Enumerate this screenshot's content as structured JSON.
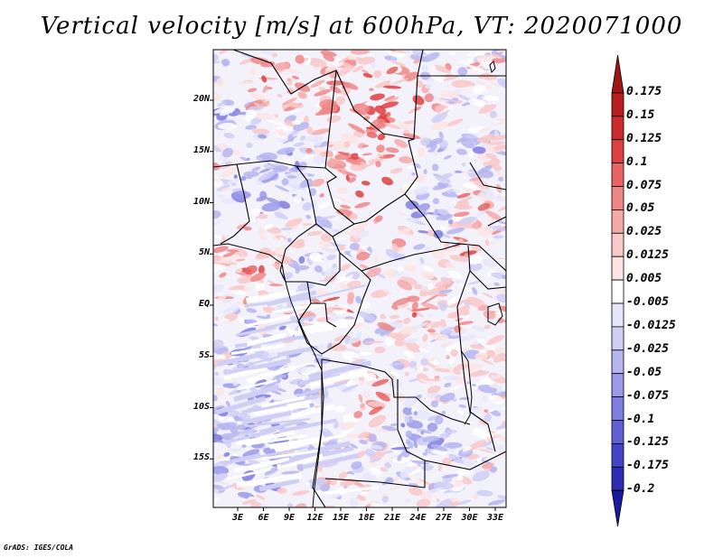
{
  "title": "Vertical velocity [m/s] at 600hPa, VT: 2020071000",
  "map": {
    "lat_labels": [
      "20N",
      "15N",
      "10N",
      "5N",
      "EQ",
      "5S",
      "10S",
      "15S"
    ],
    "lat_values": [
      20,
      15,
      10,
      5,
      0,
      -5,
      -10,
      -15
    ],
    "lon_labels": [
      "3E",
      "6E",
      "9E",
      "12E",
      "15E",
      "18E",
      "21E",
      "24E",
      "27E",
      "30E",
      "33E"
    ],
    "lon_values": [
      3,
      6,
      9,
      12,
      15,
      18,
      21,
      24,
      27,
      30,
      33
    ]
  },
  "colorbar": {
    "labels": [
      "0.175",
      "0.15",
      "0.125",
      "0.1",
      "0.075",
      "0.05",
      "0.025",
      "0.0125",
      "0.005",
      "-0.005",
      "-0.0125",
      "-0.025",
      "-0.05",
      "-0.075",
      "-0.1",
      "-0.125",
      "-0.175",
      "-0.2"
    ],
    "colors": [
      "#a01616",
      "#b81e1e",
      "#cd2b2b",
      "#de4040",
      "#e86464",
      "#ef8787",
      "#f5aaaa",
      "#f9c8c8",
      "#fce4e4",
      "#ffffff",
      "#e6e6fb",
      "#cfcff6",
      "#b5b5f0",
      "#9a9ae9",
      "#7e7ee0",
      "#6060d4",
      "#4444c6",
      "#2c2cb4",
      "#1a1a9c"
    ]
  },
  "footer": "GrADS: IGES/COLA"
}
